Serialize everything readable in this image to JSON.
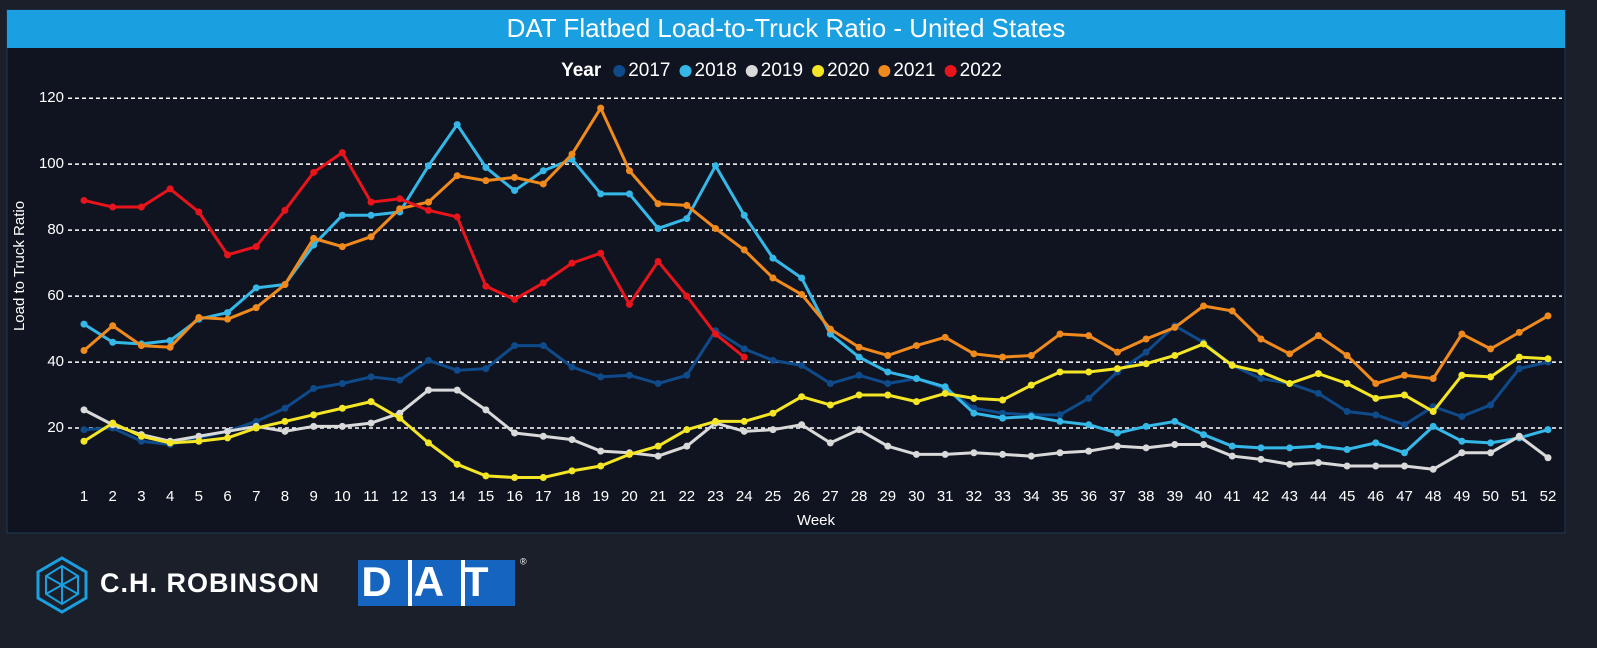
{
  "chart_data": {
    "type": "line",
    "title": "DAT Flatbed Load-to-Truck Ratio - United States",
    "x_label": "Week",
    "y_label": "Load to Truck Ratio",
    "legend_title": "Year",
    "legend": "top",
    "x": [
      1,
      2,
      3,
      4,
      5,
      6,
      7,
      8,
      9,
      10,
      11,
      12,
      13,
      14,
      15,
      16,
      17,
      18,
      19,
      20,
      21,
      22,
      23,
      24,
      25,
      26,
      27,
      28,
      29,
      30,
      31,
      32,
      33,
      34,
      35,
      36,
      37,
      38,
      39,
      40,
      41,
      42,
      43,
      44,
      45,
      46,
      47,
      48,
      49,
      50,
      51,
      52
    ],
    "xlim": [
      1,
      52
    ],
    "xticks": [
      1,
      2,
      3,
      4,
      5,
      6,
      7,
      8,
      9,
      10,
      11,
      12,
      13,
      14,
      15,
      16,
      17,
      18,
      19,
      20,
      21,
      22,
      23,
      24,
      25,
      26,
      27,
      28,
      29,
      30,
      31,
      32,
      33,
      34,
      35,
      36,
      37,
      38,
      39,
      40,
      41,
      42,
      43,
      44,
      45,
      46,
      47,
      48,
      49,
      50,
      51,
      52
    ],
    "ylim": [
      0,
      124
    ],
    "yticks": [
      20,
      40,
      60,
      80,
      100,
      120
    ],
    "grid": true,
    "series": [
      {
        "name": "2017",
        "color": "#0f4a8a",
        "values": [
          19.5,
          20,
          16,
          15,
          17,
          19,
          22,
          26,
          32,
          33.5,
          35.5,
          34.5,
          40.5,
          37.5,
          38,
          45,
          45,
          38.5,
          35.5,
          36,
          33.5,
          36,
          49.5,
          44,
          40.5,
          39,
          33.5,
          36,
          33.5,
          35,
          32,
          26,
          24.5,
          24,
          24,
          29,
          37,
          43,
          51,
          46,
          39,
          35,
          33.5,
          30.5,
          25,
          24,
          21,
          26.5,
          23.5,
          27,
          38,
          40
        ]
      },
      {
        "name": "2018",
        "color": "#35b8e8",
        "values": [
          51.5,
          46,
          45.5,
          46.5,
          53,
          55,
          62.5,
          63.5,
          75.5,
          84.5,
          84.5,
          85.5,
          99.5,
          112,
          99,
          92,
          98,
          101.5,
          91,
          91,
          80.5,
          83.5,
          99.5,
          84.5,
          71.5,
          65.5,
          48.5,
          41.5,
          37,
          35,
          32.5,
          24.5,
          23,
          23.5,
          22,
          21,
          18.5,
          20.5,
          22,
          18,
          14.5,
          14,
          14,
          14.5,
          13.5,
          15.5,
          12.5,
          20.5,
          16,
          15.5,
          17,
          19.5
        ]
      },
      {
        "name": "2019",
        "color": "#d9d9d9",
        "values": [
          25.5,
          21,
          18,
          16,
          17.5,
          19,
          20.5,
          19,
          20.5,
          20.5,
          21.5,
          24.5,
          31.5,
          31.5,
          25.5,
          18.5,
          17.5,
          16.5,
          13,
          12.5,
          11.5,
          14.5,
          21.5,
          19,
          19.5,
          21,
          15.5,
          19.5,
          14.5,
          12,
          12,
          12.5,
          12,
          11.5,
          12.5,
          13,
          14.5,
          14,
          15,
          15,
          11.5,
          10.5,
          9,
          9.5,
          8.5,
          8.5,
          8.5,
          7.5,
          12.5,
          12.5,
          17.5,
          11
        ]
      },
      {
        "name": "2020",
        "color": "#f5e625",
        "values": [
          16,
          21.5,
          17.5,
          15.5,
          16,
          17,
          20,
          22,
          24,
          26,
          28,
          23,
          15.5,
          9,
          5.5,
          5,
          5,
          7,
          8.5,
          12,
          14.5,
          19.5,
          22,
          22,
          24.5,
          29.5,
          27,
          30,
          30,
          28,
          30.5,
          29,
          28.5,
          33,
          37,
          37,
          38,
          39.5,
          42,
          45.5,
          39,
          37,
          33.5,
          36.5,
          33.5,
          29,
          30,
          25,
          36,
          35.5,
          41.5,
          41
        ]
      },
      {
        "name": "2021",
        "color": "#f08a1c",
        "values": [
          43.5,
          51,
          45,
          44.5,
          53.5,
          53,
          56.5,
          63.5,
          77.5,
          75,
          78,
          86.5,
          88.5,
          96.5,
          95,
          96,
          94,
          103,
          117,
          98,
          88,
          87.5,
          80.5,
          74,
          65.5,
          60.5,
          50,
          44.5,
          42,
          45,
          47.5,
          42.5,
          41.5,
          42,
          48.5,
          48,
          43,
          47,
          50.5,
          57,
          55.5,
          47,
          42.5,
          48,
          42,
          33.5,
          36,
          35,
          48.5,
          44,
          49,
          54
        ]
      },
      {
        "name": "2022",
        "color": "#e8141c",
        "values": [
          89,
          87,
          87,
          92.5,
          85.5,
          72.5,
          75,
          86,
          97.5,
          103.5,
          88.5,
          89.5,
          86,
          84,
          63,
          59,
          64,
          70,
          73,
          57.5,
          70.5,
          60,
          48.5,
          41.5,
          null,
          null,
          null,
          null,
          null,
          null,
          null,
          null,
          null,
          null,
          null,
          null,
          null,
          null,
          null,
          null,
          null,
          null,
          null,
          null,
          null,
          null,
          null,
          null,
          null,
          null,
          null,
          null
        ]
      }
    ]
  },
  "branding": {
    "robinson": "C.H. ROBINSON",
    "dat": "DAT",
    "registered": "®"
  }
}
